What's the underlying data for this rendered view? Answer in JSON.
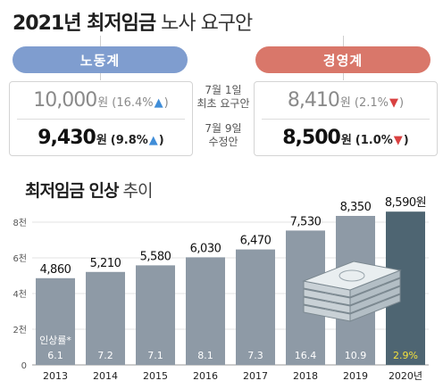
{
  "title": {
    "main": "2021년 최저임금",
    "sub": "노사 요구안"
  },
  "sides": {
    "labor": {
      "label": "노동계",
      "initial": {
        "value": "10,000",
        "unit": "원",
        "change": "(16.4%",
        "close": ")",
        "direction": "up"
      },
      "revised": {
        "value": "9,430",
        "unit": "원",
        "change": "(9.8%",
        "close": ")",
        "direction": "up"
      }
    },
    "management": {
      "label": "경영계",
      "initial": {
        "value": "8,410",
        "unit": "원",
        "change": "(2.1%",
        "close": ")",
        "direction": "down"
      },
      "revised": {
        "value": "8,500",
        "unit": "원",
        "change": "(1.0%",
        "close": ")",
        "direction": "down"
      }
    }
  },
  "middle": {
    "initial": {
      "date": "7월 1일",
      "label": "최초 요구안"
    },
    "revised": {
      "date": "7월 9일",
      "label": "수정안"
    }
  },
  "colors": {
    "labor": "#7f9dcf",
    "management": "#d9776a",
    "bar": "#8e9aa6",
    "bar_last": "#4e6572",
    "highlight": "#f3e03c",
    "arrow_up": "#3f8dd8",
    "arrow_down": "#d94141"
  },
  "chart_data": {
    "type": "bar",
    "title": "최저임금 인상",
    "title_suffix": "추이",
    "categories": [
      "2013",
      "2014",
      "2015",
      "2016",
      "2017",
      "2018",
      "2019",
      "2020년"
    ],
    "values": [
      4860,
      5210,
      5580,
      6030,
      6470,
      7530,
      8350,
      8590
    ],
    "value_labels": [
      "4,860",
      "5,210",
      "5,580",
      "6,030",
      "6,470",
      "7,530",
      "8,350",
      "8,590원"
    ],
    "increase_label": "인상률",
    "increase_marker": "*",
    "increase_rates": [
      "6.1",
      "7.2",
      "7.1",
      "8.1",
      "7.3",
      "16.4",
      "10.9",
      "2.9%"
    ],
    "yticks": [
      0,
      2000,
      4000,
      6000,
      8000
    ],
    "ytick_labels": [
      "0",
      "2천",
      "4천",
      "6천",
      "8천"
    ],
    "ylim": [
      0,
      8600
    ],
    "grid": true
  }
}
